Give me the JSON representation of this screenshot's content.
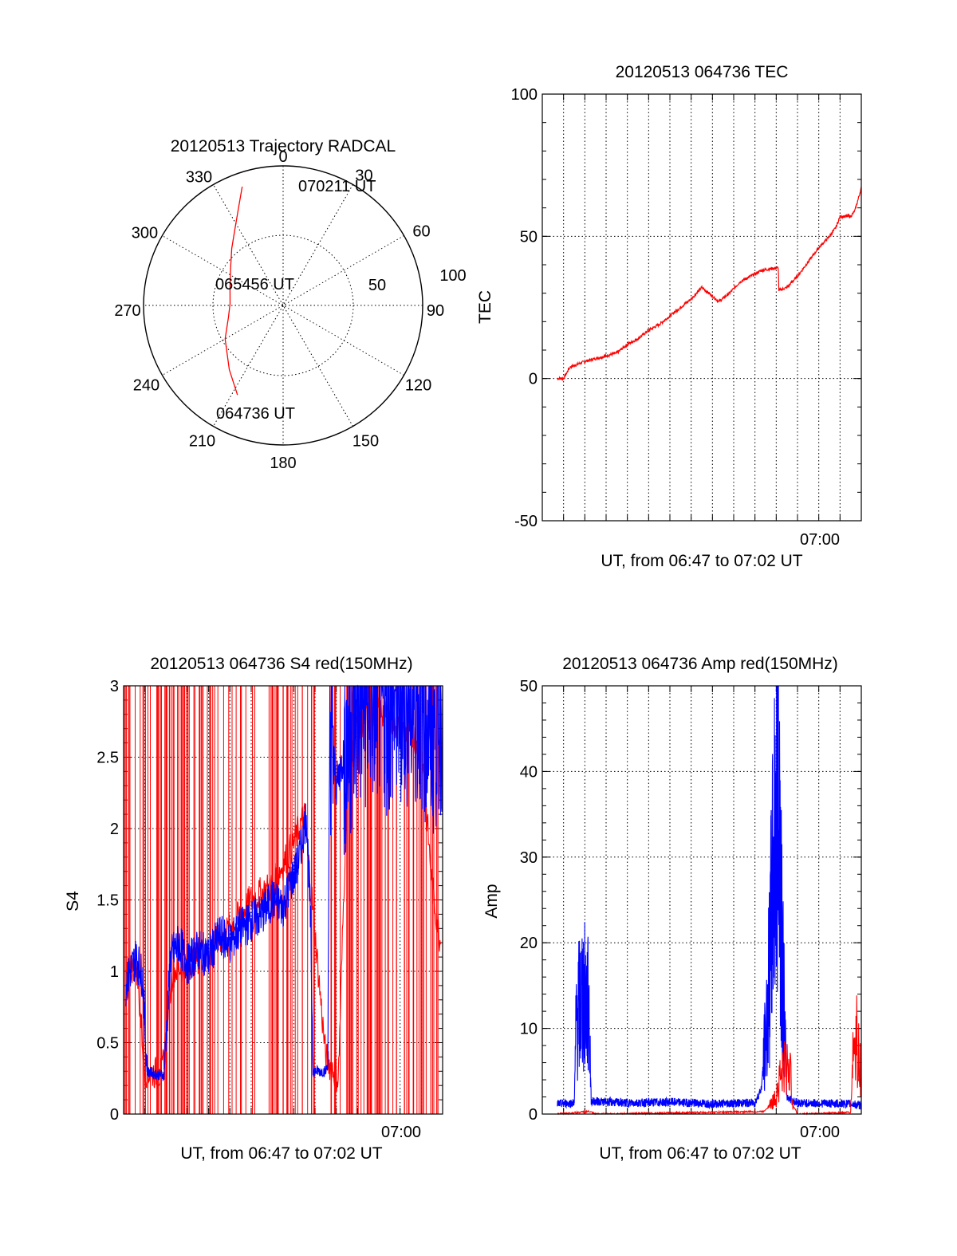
{
  "colors": {
    "red": "#ff0000",
    "blue": "#0000ff",
    "axis": "#000000"
  },
  "chart_data": [
    {
      "type": "polar",
      "title": "20120513 Trajectory RADCAL",
      "azimuth_labels": [
        "0",
        "30",
        "60",
        "90",
        "120",
        "150",
        "180",
        "210",
        "240",
        "270",
        "300",
        "330"
      ],
      "radius_labels": [
        "50",
        "100"
      ],
      "annotations": [
        "070211 UT",
        "065456 UT",
        "064736 UT"
      ],
      "series": [
        {
          "color": "#ff0000",
          "points": [
            [
              207,
              72
            ],
            [
              220,
              60
            ],
            [
              240,
              48
            ],
            [
              258,
              40
            ],
            [
              272,
              38
            ],
            [
              288,
              40
            ],
            [
              305,
              46
            ],
            [
              318,
              55
            ],
            [
              328,
              65
            ],
            [
              336,
              78
            ],
            [
              341,
              90
            ]
          ]
        }
      ],
      "rlim": [
        0,
        100
      ]
    },
    {
      "type": "line",
      "title": "20120513 064736 TEC",
      "xlabel": "UT, from 06:47 to 07:02 UT",
      "ylabel": "TEC",
      "ylim": [
        -50,
        100
      ],
      "yticks": [
        "-50",
        "0",
        "50",
        "100"
      ],
      "xtick_labels": [
        "07:00"
      ],
      "xlim_minutes": [
        0,
        15
      ],
      "series": [
        {
          "color": "#ff0000",
          "points": [
            [
              0.7,
              0
            ],
            [
              1.0,
              0
            ],
            [
              1.3,
              4
            ],
            [
              2.0,
              6
            ],
            [
              2.5,
              7
            ],
            [
              3.0,
              8
            ],
            [
              3.5,
              9
            ],
            [
              4.0,
              12
            ],
            [
              4.5,
              14
            ],
            [
              5.0,
              17
            ],
            [
              5.5,
              19
            ],
            [
              6.0,
              22
            ],
            [
              6.5,
              25
            ],
            [
              7.0,
              28
            ],
            [
              7.5,
              32
            ],
            [
              8.0,
              29
            ],
            [
              8.3,
              27
            ],
            [
              8.8,
              30
            ],
            [
              9.3,
              34
            ],
            [
              9.8,
              36
            ],
            [
              10.3,
              38
            ],
            [
              11.1,
              39
            ],
            [
              11.12,
              31
            ],
            [
              11.5,
              32
            ],
            [
              12.0,
              36
            ],
            [
              12.5,
              41
            ],
            [
              13.0,
              46
            ],
            [
              13.5,
              50
            ],
            [
              13.8,
              53
            ],
            [
              14.0,
              57
            ],
            [
              14.5,
              57
            ],
            [
              14.7,
              59
            ],
            [
              14.85,
              63
            ],
            [
              15.0,
              67
            ]
          ]
        }
      ]
    },
    {
      "type": "line",
      "title": "20120513 064736 S4 red(150MHz)",
      "xlabel": "UT, from 06:47 to 07:02 UT",
      "ylabel": "S4",
      "ylim": [
        0,
        3
      ],
      "yticks": [
        "0",
        "0.5",
        "1",
        "1.5",
        "2",
        "2.5",
        "3"
      ],
      "xtick_labels": [
        "07:00"
      ],
      "xlim_minutes": [
        0,
        15
      ],
      "series": [
        {
          "color": "#ff0000",
          "points": [
            [
              0.1,
              0.95
            ],
            [
              0.6,
              1.05
            ],
            [
              1.0,
              0.3
            ],
            [
              1.8,
              0.28
            ],
            [
              2.3,
              1.0
            ],
            [
              3.0,
              1.05
            ],
            [
              4.0,
              1.15
            ],
            [
              5.0,
              1.3
            ],
            [
              6.0,
              1.5
            ],
            [
              7.0,
              1.6
            ],
            [
              8.0,
              1.9
            ],
            [
              8.5,
              2.1
            ],
            [
              8.8,
              1.6
            ],
            [
              9.5,
              0.4
            ],
            [
              10.1,
              0.25
            ],
            [
              10.5,
              2.3
            ],
            [
              11.0,
              2.7
            ],
            [
              12.0,
              2.85
            ],
            [
              13.0,
              2.7
            ],
            [
              14.0,
              2.6
            ],
            [
              14.5,
              1.6
            ],
            [
              14.9,
              1.2
            ]
          ]
        },
        {
          "color": "#0000ff",
          "points": [
            [
              0.1,
              0.9
            ],
            [
              0.3,
              1.0
            ],
            [
              0.6,
              1.1
            ],
            [
              0.9,
              0.95
            ],
            [
              1.1,
              0.3
            ],
            [
              1.5,
              0.28
            ],
            [
              1.9,
              0.27
            ],
            [
              2.2,
              1.1
            ],
            [
              2.6,
              1.2
            ],
            [
              3.0,
              1.05
            ],
            [
              3.5,
              1.15
            ],
            [
              4.0,
              1.1
            ],
            [
              4.5,
              1.25
            ],
            [
              5.0,
              1.2
            ],
            [
              5.5,
              1.3
            ],
            [
              6.0,
              1.35
            ],
            [
              6.5,
              1.4
            ],
            [
              7.0,
              1.5
            ],
            [
              7.5,
              1.45
            ],
            [
              7.8,
              1.6
            ],
            [
              8.2,
              1.75
            ],
            [
              8.6,
              2.1
            ],
            [
              8.8,
              1.3
            ],
            [
              8.9,
              0.3
            ],
            [
              9.5,
              0.3
            ],
            [
              9.6,
              0.35
            ],
            [
              9.7,
              2.8
            ],
            [
              10.0,
              2.3
            ],
            [
              10.5,
              2.6
            ],
            [
              11.0,
              2.9
            ],
            [
              11.5,
              2.9
            ],
            [
              12.0,
              2.95
            ],
            [
              12.5,
              2.85
            ],
            [
              13.0,
              2.95
            ],
            [
              14.0,
              2.9
            ],
            [
              14.5,
              2.7
            ],
            [
              15.0,
              2.9
            ]
          ]
        }
      ]
    },
    {
      "type": "line",
      "title": "20120513 064736 Amp red(150MHz)",
      "xlabel": "UT, from 06:47 to 07:02 UT",
      "ylabel": "Amp",
      "ylim": [
        0,
        50
      ],
      "yticks": [
        "0",
        "10",
        "20",
        "30",
        "40",
        "50"
      ],
      "xtick_labels": [
        "07:00"
      ],
      "xlim_minutes": [
        0,
        15
      ],
      "series": [
        {
          "color": "#ff0000",
          "points": [
            [
              0.7,
              0
            ],
            [
              2.2,
              0.3
            ],
            [
              2.5,
              0
            ],
            [
              10.4,
              0.3
            ],
            [
              10.9,
              1.5
            ],
            [
              11.2,
              4.5
            ],
            [
              11.6,
              6
            ],
            [
              11.8,
              1
            ],
            [
              12.0,
              0
            ],
            [
              14.5,
              0.2
            ],
            [
              14.6,
              7
            ],
            [
              14.8,
              9
            ],
            [
              15.0,
              4
            ]
          ]
        },
        {
          "color": "#0000ff",
          "points": [
            [
              0.7,
              1.2
            ],
            [
              1.5,
              1.3
            ],
            [
              1.6,
              11
            ],
            [
              1.9,
              14
            ],
            [
              2.2,
              12
            ],
            [
              2.3,
              1.5
            ],
            [
              4.0,
              1.3
            ],
            [
              6.0,
              1.4
            ],
            [
              8.0,
              1.2
            ],
            [
              9.5,
              1.3
            ],
            [
              10.0,
              1.3
            ],
            [
              10.3,
              3
            ],
            [
              10.6,
              12
            ],
            [
              10.9,
              30
            ],
            [
              11.1,
              42
            ],
            [
              11.3,
              18
            ],
            [
              11.5,
              2
            ],
            [
              12.0,
              1.3
            ],
            [
              14.5,
              1.2
            ],
            [
              15.0,
              1.0
            ]
          ]
        }
      ]
    }
  ]
}
